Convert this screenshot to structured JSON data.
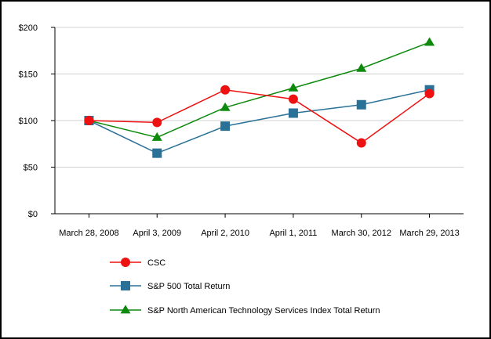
{
  "chart_data": {
    "type": "line",
    "title": "",
    "xlabel": "",
    "ylabel": "",
    "categories": [
      "March 28, 2008",
      "April 3, 2009",
      "April 2, 2010",
      "April 1, 2011",
      "March 30, 2012",
      "March 29, 2013"
    ],
    "ylim": [
      0,
      200
    ],
    "yticks": [
      0,
      50,
      100,
      150,
      200
    ],
    "ytick_labels": [
      "$0",
      "$50",
      "$100",
      "$150",
      "$200"
    ],
    "grid": true,
    "legend_position": "bottom-left",
    "series": [
      {
        "name": "CSC",
        "color": "#ee1111",
        "marker": "circle",
        "values": [
          100,
          98,
          133,
          123,
          76,
          129
        ]
      },
      {
        "name": "S&P 500 Total Return",
        "color": "#2a7197",
        "marker": "square",
        "values": [
          100,
          65,
          94,
          108,
          117,
          133
        ]
      },
      {
        "name": "S&P North American Technology Services Index Total Return",
        "color": "#0d8a0d",
        "marker": "triangle",
        "values": [
          100,
          82,
          114,
          135,
          156,
          184
        ]
      }
    ]
  }
}
